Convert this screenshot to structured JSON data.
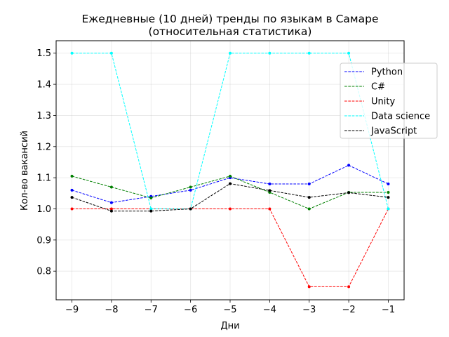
{
  "chart_data": {
    "type": "line",
    "title": "Ежедневные (10 дней) тренды по языкам в Самаре",
    "subtitle": "(относительная статистика)",
    "xlabel": "Дни",
    "ylabel": "Кол-во вакансий",
    "x": [
      -9,
      -8,
      -7,
      -6,
      -5,
      -4,
      -3,
      -2,
      -1
    ],
    "xlim": [
      -9.4,
      -0.6
    ],
    "ylim": [
      0.708,
      1.54
    ],
    "x_ticks": [
      "−9",
      "−8",
      "−7",
      "−6",
      "−5",
      "−4",
      "−3",
      "−2",
      "−1"
    ],
    "y_ticks": [
      "0.8",
      "0.9",
      "1.0",
      "1.1",
      "1.2",
      "1.3",
      "1.4",
      "1.5"
    ],
    "y_tick_values": [
      0.8,
      0.9,
      1.0,
      1.1,
      1.2,
      1.3,
      1.4,
      1.5
    ],
    "grid": true,
    "legend_position": "top-right",
    "series": [
      {
        "name": "Python",
        "color": "#0000ff",
        "values": [
          1.06,
          1.02,
          1.04,
          1.06,
          1.1,
          1.08,
          1.08,
          1.14,
          1.08
        ]
      },
      {
        "name": "C#",
        "color": "#008000",
        "values": [
          1.105,
          1.07,
          1.035,
          1.07,
          1.105,
          1.053,
          1.0,
          1.053,
          1.053
        ]
      },
      {
        "name": "Unity",
        "color": "#ff0000",
        "values": [
          1.0,
          1.0,
          1.0,
          1.0,
          1.0,
          1.0,
          0.75,
          0.75,
          1.0
        ]
      },
      {
        "name": "Data science",
        "color": "#00ffff",
        "values": [
          1.5,
          1.5,
          1.0,
          1.0,
          1.5,
          1.5,
          1.5,
          1.5,
          1.0
        ]
      },
      {
        "name": "JavaScript",
        "color": "#000000",
        "values": [
          1.037,
          0.993,
          0.993,
          1.0,
          1.081,
          1.059,
          1.037,
          1.052,
          1.037
        ]
      }
    ]
  }
}
